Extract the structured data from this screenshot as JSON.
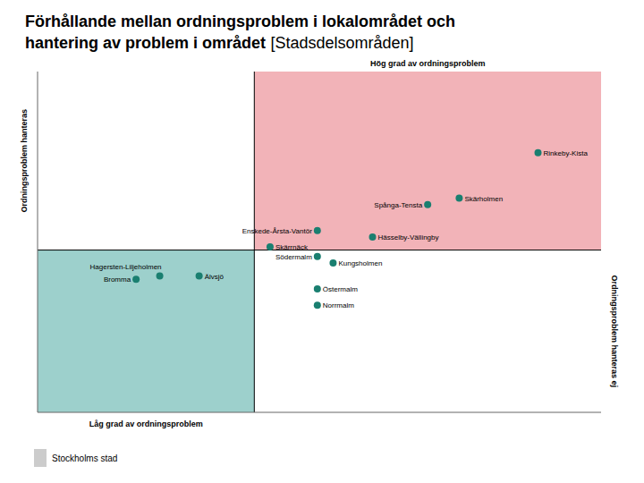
{
  "chart_data": {
    "type": "scatter",
    "title": [
      "Förhållande mellan ordningsproblem i lokalområdet och",
      "hantering av problem i området"
    ],
    "subtitle": "[Stadsdelsområden]",
    "labels": [
      "Rinkeby-Kista",
      "Skärholmen",
      "Spånga-Tensta",
      "Enskede-Årsta-Vantör",
      "Hässelby-Vällingby",
      "Skärrnäck",
      "Södermalm",
      "Kungsholmen",
      "Hagersten-Liljeholmen",
      "Älvsjö",
      "Bromma",
      "Östermalm",
      "Norrmalm"
    ],
    "x": [
      0.72,
      0.52,
      0.44,
      0.16,
      0.3,
      0.04,
      0.16,
      0.2,
      -0.24,
      -0.14,
      -0.3,
      0.16,
      0.16
    ],
    "values": [
      0.3,
      0.16,
      0.14,
      0.06,
      0.04,
      0.01,
      -0.02,
      -0.04,
      -0.08,
      -0.08,
      -0.09,
      -0.12,
      -0.17
    ],
    "color": "#1a7f70",
    "quadrant_colors": [
      "#f2b3b8",
      "#9dd0cc"
    ],
    "origin": [
      0,
      0
    ],
    "xlim": [
      -0.55,
      0.88
    ],
    "ylim": [
      -0.5,
      0.55
    ],
    "annotations": [
      "Hög grad av ordningsproblem",
      "Låg grad av ordningsproblem",
      "Ordningsproblem hanteras",
      "Ordningsproblem hanteras ej",
      "Stockholms stad"
    ],
    "tick_labels": false,
    "grid": false
  }
}
